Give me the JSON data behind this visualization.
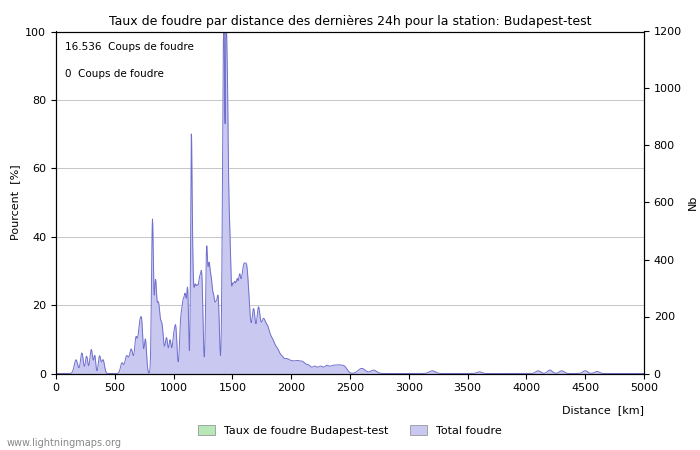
{
  "title": "Taux de foudre par distance des dernières 24h pour la station: Budapest-test",
  "xlabel": "Distance  [km]",
  "ylabel_left": "Pourcent  [%]",
  "ylabel_right": "Nb",
  "annotation_line1": "16.536  Coups de foudre",
  "annotation_line2": "0  Coups de foudre",
  "legend_green": "Taux de foudre Budapest-test",
  "legend_blue": "Total foudre",
  "watermark": "www.lightningmaps.org",
  "xlim": [
    0,
    5000
  ],
  "ylim_left": [
    0,
    100
  ],
  "ylim_right": [
    0,
    1200
  ],
  "xticks": [
    0,
    500,
    1000,
    1500,
    2000,
    2500,
    3000,
    3500,
    4000,
    4500,
    5000
  ],
  "yticks_left": [
    0,
    20,
    40,
    60,
    80,
    100
  ],
  "yticks_right": [
    0,
    200,
    400,
    600,
    800,
    1000,
    1200
  ],
  "fill_color": "#c8c8f0",
  "fill_green_color": "#b8e8b8",
  "line_color": "#7070cc",
  "background_color": "#ffffff",
  "grid_color": "#bbbbbb"
}
